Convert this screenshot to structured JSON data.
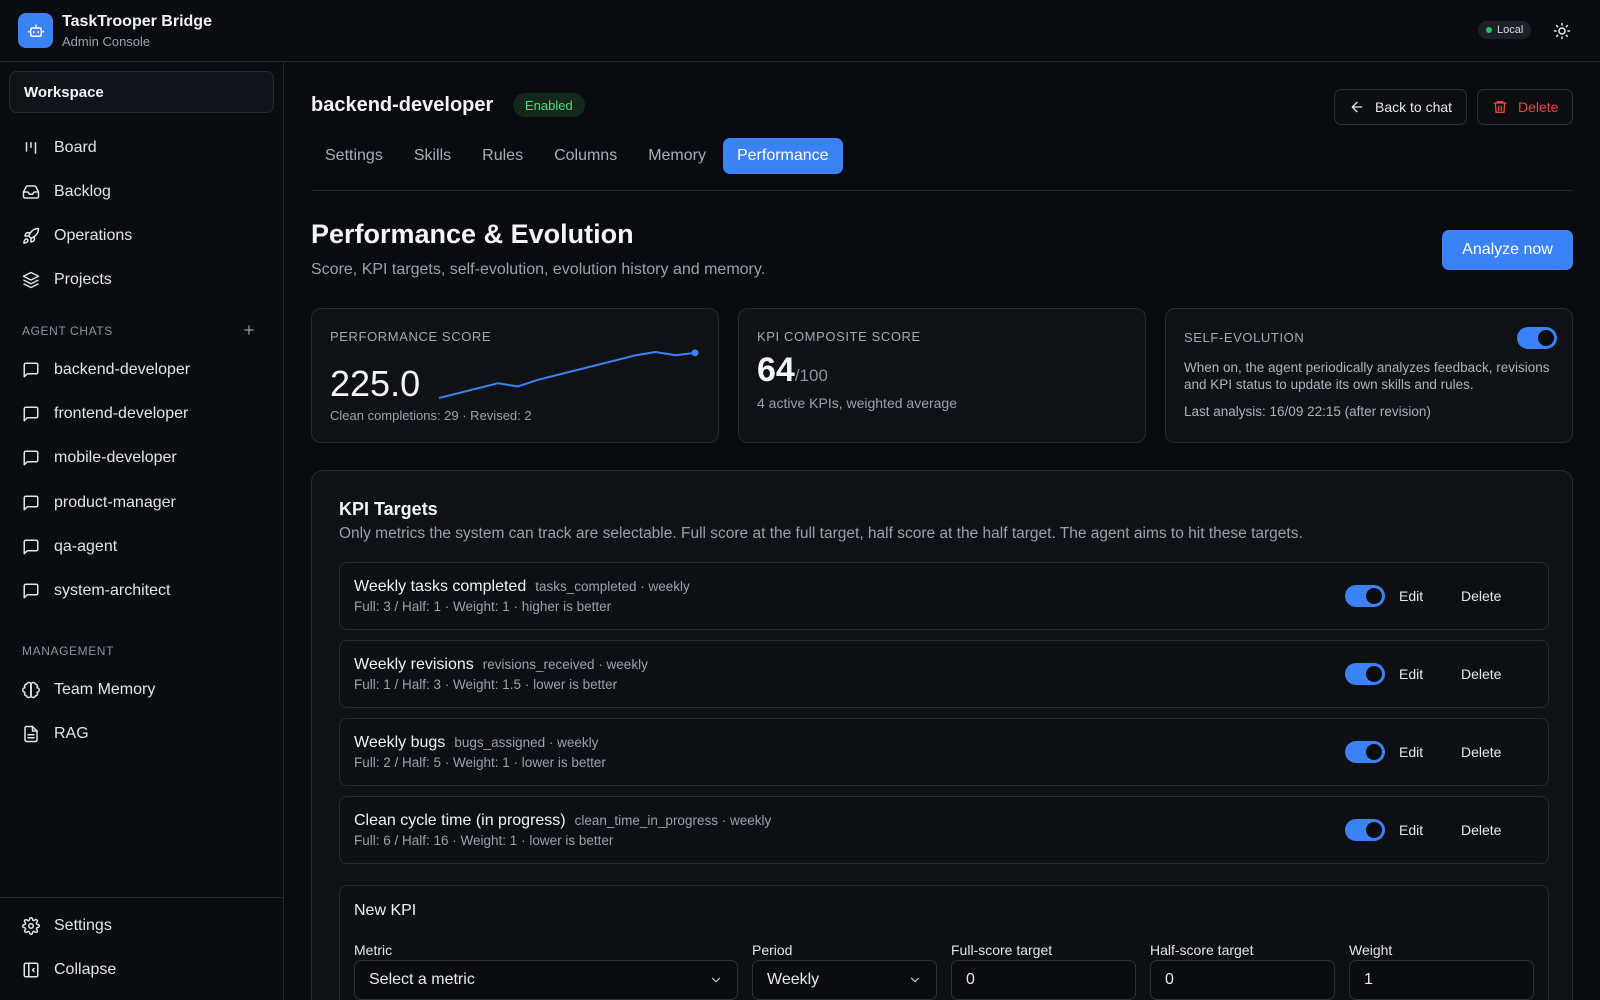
{
  "app": {
    "title": "TaskTrooper Bridge",
    "subtitle": "Admin Console",
    "env_badge": "Local",
    "accent": "#3b82f6"
  },
  "sidebar": {
    "workspace": "Workspace",
    "nav": [
      {
        "label": "Board",
        "icon": "board-icon"
      },
      {
        "label": "Backlog",
        "icon": "inbox-icon"
      },
      {
        "label": "Operations",
        "icon": "rocket-icon"
      },
      {
        "label": "Projects",
        "icon": "layers-icon"
      }
    ],
    "agent_chats_label": "AGENT CHATS",
    "chats": [
      "backend-developer",
      "frontend-developer",
      "mobile-developer",
      "product-manager",
      "qa-agent",
      "system-architect"
    ],
    "management_label": "MANAGEMENT",
    "management": [
      {
        "label": "Team Memory",
        "icon": "brain-icon"
      },
      {
        "label": "RAG",
        "icon": "document-icon"
      }
    ],
    "footer": {
      "settings": "Settings",
      "collapse": "Collapse"
    }
  },
  "agent": {
    "name": "backend-developer",
    "status": "Enabled",
    "status_color": "#4ade80"
  },
  "actions": {
    "back": "Back to chat",
    "delete": "Delete",
    "delete_color": "#ef4444"
  },
  "tabs": [
    "Settings",
    "Skills",
    "Rules",
    "Columns",
    "Memory",
    "Performance"
  ],
  "active_tab": "Performance",
  "page": {
    "title": "Performance & Evolution",
    "subtitle": "Score, KPI targets, self-evolution, evolution history and memory.",
    "analyze": "Analyze now"
  },
  "cards": {
    "performance": {
      "label": "PERFORMANCE SCORE",
      "value": "225.0",
      "meta": "Clean completions: 29 · Revised: 2",
      "sparkline": [
        170,
        176,
        182,
        188,
        184,
        192,
        198,
        204,
        210,
        216,
        222,
        226,
        222,
        225
      ]
    },
    "kpi": {
      "label": "KPI COMPOSITE SCORE",
      "value": "64",
      "denom": "/100",
      "meta": "4 active KPIs, weighted average"
    },
    "evolution": {
      "label": "SELF-EVOLUTION",
      "enabled": true,
      "desc": "When on, the agent periodically analyzes feedback, revisions and KPI status to update its own skills and rules.",
      "last": "Last analysis: 16/09 22:15 (after revision)"
    }
  },
  "kpi_targets": {
    "title": "KPI Targets",
    "desc": "Only metrics the system can track are selectable. Full score at the full target, half score at the half target. The agent aims to hit these targets.",
    "edit_label": "Edit",
    "delete_label": "Delete",
    "rows": [
      {
        "name": "Weekly tasks completed",
        "key": "tasks_completed · weekly",
        "meta": "Full: 3 / Half: 1 · Weight: 1 · higher is better",
        "enabled": true
      },
      {
        "name": "Weekly revisions",
        "key": "revisions_received · weekly",
        "meta": "Full: 1 / Half: 3 · Weight: 1.5 · lower is better",
        "enabled": true
      },
      {
        "name": "Weekly bugs",
        "key": "bugs_assigned · weekly",
        "meta": "Full: 2 / Half: 5 · Weight: 1 · lower is better",
        "enabled": true
      },
      {
        "name": "Clean cycle time (in progress)",
        "key": "clean_time_in_progress · weekly",
        "meta": "Full: 6 / Half: 16 · Weight: 1 · lower is better",
        "enabled": true
      }
    ]
  },
  "new_kpi": {
    "title": "New KPI",
    "metric_label": "Metric",
    "metric_value": "Select a metric",
    "period_label": "Period",
    "period_value": "Weekly",
    "full_label": "Full-score target",
    "full_value": "0",
    "half_label": "Half-score target",
    "half_value": "0",
    "weight_label": "Weight",
    "weight_value": "1"
  }
}
